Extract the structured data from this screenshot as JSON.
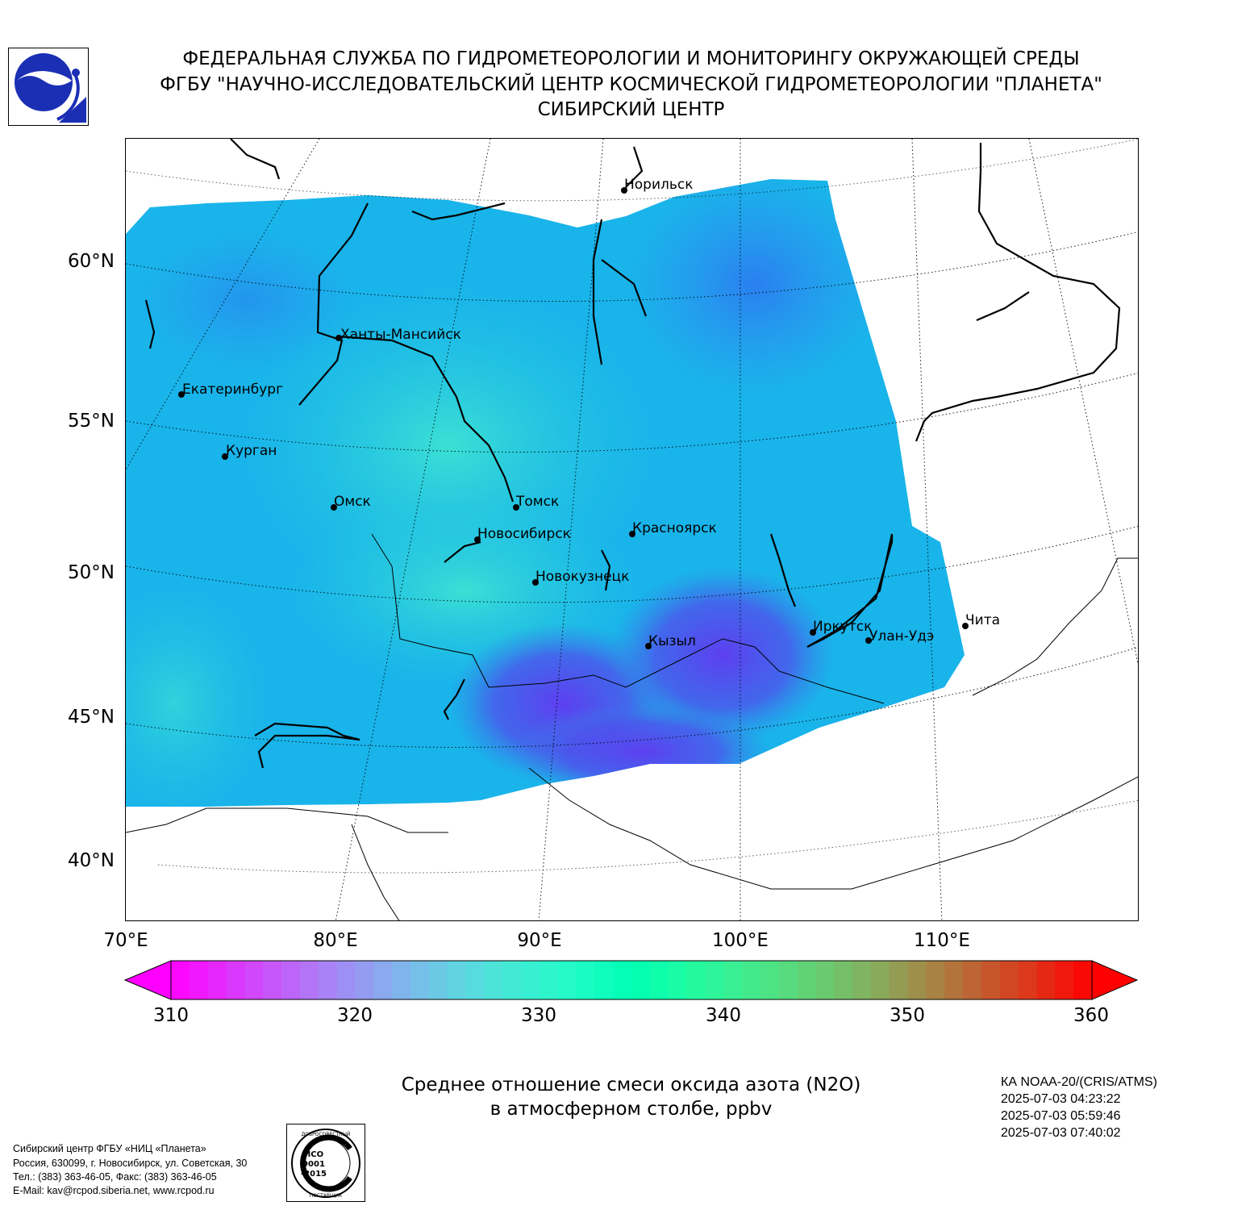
{
  "header": {
    "line1": "ФЕДЕРАЛЬНАЯ СЛУЖБА ПО ГИДРОМЕТЕОРОЛОГИИ И МОНИТОРИНГУ ОКРУЖАЮЩЕЙ СРЕДЫ",
    "line2": "ФГБУ \"НАУЧНО-ИССЛЕДОВАТЕЛЬСКИЙ ЦЕНТР КОСМИЧЕСКОЙ ГИДРОМЕТЕОРОЛОГИИ \"ПЛАНЕТА\"",
    "line3": "СИБИРСКИЙ ЦЕНТР"
  },
  "map": {
    "lat_labels": [
      "60°N",
      "55°N",
      "50°N",
      "45°N",
      "40°N"
    ],
    "lon_labels": [
      "70°E",
      "80°E",
      "90°E",
      "100°E",
      "110°E"
    ],
    "cities": [
      "Норильск",
      "Ханты-Мансийск",
      "Екатеринбург",
      "Курган",
      "Омск",
      "Томск",
      "Новосибирск",
      "Красноярск",
      "Новокузнецк",
      "Иркутск",
      "Улан-Удэ",
      "Чита",
      "Кызыл"
    ]
  },
  "colorbar": {
    "ticks": [
      "310",
      "320",
      "330",
      "340",
      "350",
      "360"
    ],
    "min": 310,
    "max": 360,
    "colormap": "rainbow"
  },
  "product": {
    "title_line1": "Среднее отношение смеси оксида азота (N2O)",
    "title_line2": "в атмосферном столбе, ppbv"
  },
  "satellite": {
    "name": "КА NOAA-20/(CRIS/ATMS)",
    "times": [
      "2025-07-03 04:23:22",
      "2025-07-03 05:59:46",
      "2025-07-03 07:40:02"
    ]
  },
  "footer": {
    "line1": "Сибирский центр ФГБУ «НИЦ «Планета»",
    "line2": "Россия, 630099, г. Новосибирск, ул. Советская, 30",
    "line3": "Тел.: (383) 363-46-05, Факс: (383) 363-46-05",
    "line4": "E-Mail: kav@rcpod.siberia.net, www.rcpod.ru"
  },
  "iso_badge": {
    "top": "ДОБРОСОВЕСТНЫЙ",
    "mid": "ИСО 9001 -2015",
    "bottom": "ПОСТАВЩИК"
  }
}
